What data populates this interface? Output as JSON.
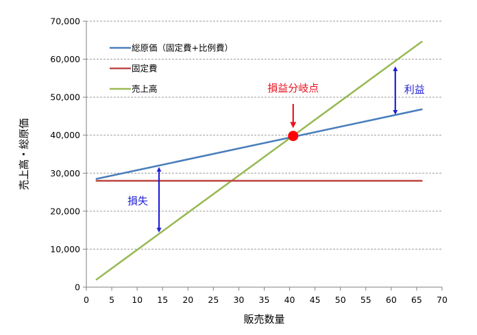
{
  "chart_data": {
    "type": "line",
    "xlabel": "販売数量",
    "ylabel": "売上高・総原価",
    "xlim": [
      0,
      70
    ],
    "ylim": [
      0,
      70000
    ],
    "xticks": [
      "0",
      "5",
      "10",
      "15",
      "20",
      "25",
      "30",
      "35",
      "40",
      "45",
      "50",
      "55",
      "60",
      "65",
      "70"
    ],
    "yticks": [
      "0",
      "10,000",
      "20,000",
      "30,000",
      "40,000",
      "50,000",
      "60,000",
      "70,000"
    ],
    "grid": "horizontal-dashed",
    "legend": "top-left",
    "series": [
      {
        "name": "総原価（固定費+比例費）",
        "color": "#4a7ebb",
        "x": [
          2,
          66
        ],
        "y": [
          28500,
          46800
        ]
      },
      {
        "name": "固定費",
        "color": "#be4b48",
        "x": [
          2,
          66
        ],
        "y": [
          28000,
          28000
        ]
      },
      {
        "name": "売上高",
        "color": "#98b954",
        "x": [
          2,
          66
        ],
        "y": [
          2000,
          64600
        ]
      }
    ],
    "annotations": {
      "break_even_label": "損益分岐点",
      "break_even_point": {
        "x": 40.7,
        "y": 39800
      },
      "profit_label": "利益",
      "loss_label": "損失",
      "loss_arrow": {
        "x": 14.3,
        "y_from": 31000,
        "y_to": 15000
      },
      "profit_arrow": {
        "x": 60.8,
        "y_from": 57500,
        "y_to": 46000
      }
    }
  }
}
